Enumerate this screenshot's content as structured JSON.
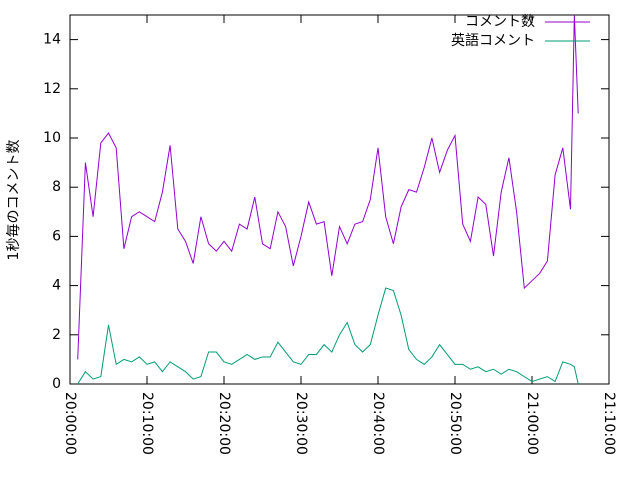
{
  "chart_data": {
    "type": "line",
    "ylabel": "1秒毎のコメント数",
    "x": [
      "20:01:00",
      "20:02:00",
      "20:03:00",
      "20:04:00",
      "20:05:00",
      "20:06:00",
      "20:07:00",
      "20:08:00",
      "20:09:00",
      "20:10:00",
      "20:11:00",
      "20:12:00",
      "20:13:00",
      "20:14:00",
      "20:15:00",
      "20:16:00",
      "20:17:00",
      "20:18:00",
      "20:19:00",
      "20:20:00",
      "20:21:00",
      "20:22:00",
      "20:23:00",
      "20:24:00",
      "20:25:00",
      "20:26:00",
      "20:27:00",
      "20:28:00",
      "20:29:00",
      "20:30:00",
      "20:31:00",
      "20:32:00",
      "20:33:00",
      "20:34:00",
      "20:35:00",
      "20:36:00",
      "20:37:00",
      "20:38:00",
      "20:39:00",
      "20:40:00",
      "20:41:00",
      "20:42:00",
      "20:43:00",
      "20:44:00",
      "20:45:00",
      "20:46:00",
      "20:47:00",
      "20:48:00",
      "20:49:00",
      "20:50:00",
      "20:51:00",
      "20:52:00",
      "20:53:00",
      "20:54:00",
      "20:55:00",
      "20:56:00",
      "20:57:00",
      "20:58:00",
      "20:59:00",
      "21:00:00",
      "21:01:00",
      "21:02:00",
      "21:03:00",
      "21:04:00",
      "21:05:00",
      "21:05:30",
      "21:06:00"
    ],
    "series": [
      {
        "name": "コメント数",
        "color": "#9400d3",
        "values": [
          1,
          9,
          6.8,
          9.8,
          10.2,
          9.6,
          5.5,
          6.8,
          7.0,
          6.8,
          6.6,
          7.8,
          9.7,
          6.3,
          5.8,
          4.9,
          6.8,
          5.7,
          5.4,
          5.8,
          5.4,
          6.5,
          6.3,
          7.6,
          5.7,
          5.5,
          7.0,
          6.4,
          4.8,
          6.0,
          7.4,
          6.5,
          6.6,
          4.4,
          6.4,
          5.7,
          6.5,
          6.6,
          7.5,
          9.6,
          6.8,
          5.7,
          7.2,
          7.9,
          7.8,
          8.8,
          10.0,
          8.6,
          9.5,
          10.1,
          6.5,
          5.8,
          7.6,
          7.3,
          5.2,
          7.8,
          9.2,
          7.0,
          3.9,
          4.2,
          4.5,
          5.0,
          8.5,
          9.6,
          7.1,
          15,
          11
        ]
      },
      {
        "name": "英語コメント",
        "color": "#009e73",
        "values": [
          0,
          0.5,
          0.2,
          0.3,
          2.4,
          0.8,
          1.0,
          0.9,
          1.1,
          0.8,
          0.9,
          0.5,
          0.9,
          0.7,
          0.5,
          0.2,
          0.3,
          1.3,
          1.3,
          0.9,
          0.8,
          1.0,
          1.2,
          1.0,
          1.1,
          1.1,
          1.7,
          1.3,
          0.9,
          0.8,
          1.2,
          1.2,
          1.6,
          1.3,
          2.0,
          2.5,
          1.6,
          1.3,
          1.6,
          2.8,
          3.9,
          3.8,
          2.8,
          1.4,
          1.0,
          0.8,
          1.1,
          1.6,
          1.2,
          0.8,
          0.8,
          0.6,
          0.7,
          0.5,
          0.6,
          0.4,
          0.6,
          0.5,
          0.3,
          0.1,
          0.2,
          0.3,
          0.1,
          0.9,
          0.8,
          0.7,
          0
        ]
      }
    ],
    "xlim": [
      "20:00:00",
      "21:10:00"
    ],
    "xticks": [
      "20:00:00",
      "20:10:00",
      "20:20:00",
      "20:30:00",
      "20:40:00",
      "20:50:00",
      "21:00:00",
      "21:10:00"
    ],
    "ylim": [
      0,
      15
    ],
    "yticks": [
      0,
      2,
      4,
      6,
      8,
      10,
      12,
      14
    ],
    "legend": "top-right"
  }
}
